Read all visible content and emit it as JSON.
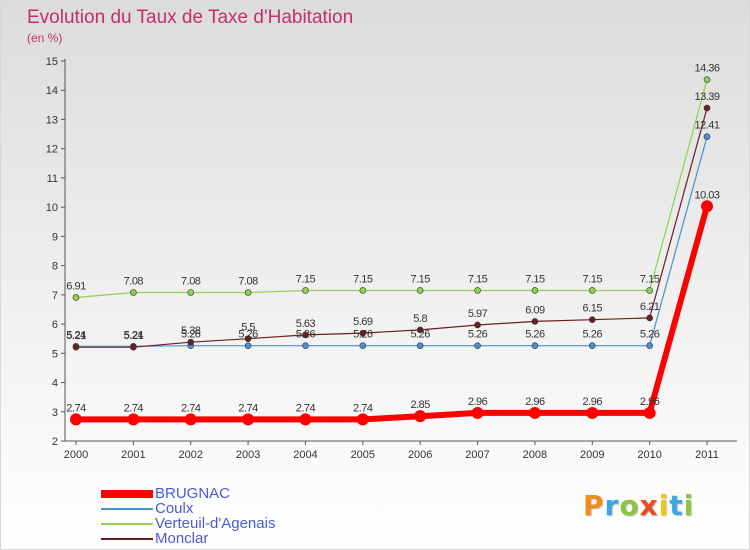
{
  "title": "Evolution du Taux de Taxe d'Habitation",
  "unit_label": "(en %)",
  "logo": {
    "text": "Proxiti",
    "colors": [
      "#f28c1a",
      "#3ba7df",
      "#8cc63f",
      "#e94c1f",
      "#f5c516",
      "#3ba7df",
      "#8cc63f"
    ]
  },
  "chart_data": {
    "type": "line",
    "x": [
      "2000",
      "2001",
      "2002",
      "2003",
      "2004",
      "2005",
      "2006",
      "2007",
      "2008",
      "2009",
      "2010",
      "2011"
    ],
    "ylim": [
      2,
      15
    ],
    "yticks": [
      2,
      3,
      4,
      5,
      6,
      7,
      8,
      9,
      10,
      11,
      12,
      13,
      14,
      15
    ],
    "grid": false,
    "legend_position": "bottom-left",
    "series": [
      {
        "name": "Coulx",
        "color": "#4a90d0",
        "line_width": 1.2,
        "marker_radius": 3,
        "values": [
          5.24,
          5.24,
          5.26,
          5.26,
          5.26,
          5.26,
          5.26,
          5.26,
          5.26,
          5.26,
          5.26,
          12.41
        ],
        "labels": [
          "5.24",
          "5.24",
          "5.26",
          "5.26",
          "5.26",
          "5.26",
          "5.26",
          "5.26",
          "5.26",
          "5.26",
          "5.26",
          "12.41"
        ]
      },
      {
        "name": "Verteuil-d'Agenais",
        "color": "#8fd14f",
        "line_width": 1.2,
        "marker_radius": 3,
        "values": [
          6.91,
          7.08,
          7.08,
          7.08,
          7.15,
          7.15,
          7.15,
          7.15,
          7.15,
          7.15,
          7.15,
          14.36
        ],
        "labels": [
          "6.91",
          "7.08",
          "7.08",
          "7.08",
          "7.15",
          "7.15",
          "7.15",
          "7.15",
          "7.15",
          "7.15",
          "7.15",
          "14.36"
        ]
      },
      {
        "name": "Monclar",
        "color": "#6b1e22",
        "line_width": 1.2,
        "marker_radius": 3,
        "values": [
          5.21,
          5.21,
          5.38,
          5.5,
          5.63,
          5.69,
          5.8,
          5.97,
          6.09,
          6.15,
          6.21,
          13.39
        ],
        "labels": [
          "5.21",
          "5.21",
          "5.38",
          "5.5",
          "5.63",
          "5.69",
          "5.8",
          "5.97",
          "6.09",
          "6.15",
          "6.21",
          "13.39"
        ]
      },
      {
        "name": "BRUGNAC",
        "color": "#ff0000",
        "line_width": 6,
        "marker_radius": 6,
        "values": [
          2.74,
          2.74,
          2.74,
          2.74,
          2.74,
          2.74,
          2.85,
          2.96,
          2.96,
          2.96,
          2.96,
          10.03
        ],
        "labels": [
          "2.74",
          "2.74",
          "2.74",
          "2.74",
          "2.74",
          "2.74",
          "2.85",
          "2.96",
          "2.96",
          "2.96",
          "2.96",
          "10.03"
        ]
      }
    ],
    "legend": [
      {
        "name": "BRUGNAC",
        "color": "#ff0000",
        "thickness": 8
      },
      {
        "name": "Coulx",
        "color": "#4a90d0",
        "thickness": 2
      },
      {
        "name": "Verteuil-d'Agenais",
        "color": "#8fd14f",
        "thickness": 2
      },
      {
        "name": "Monclar",
        "color": "#6b1e22",
        "thickness": 2
      }
    ]
  }
}
